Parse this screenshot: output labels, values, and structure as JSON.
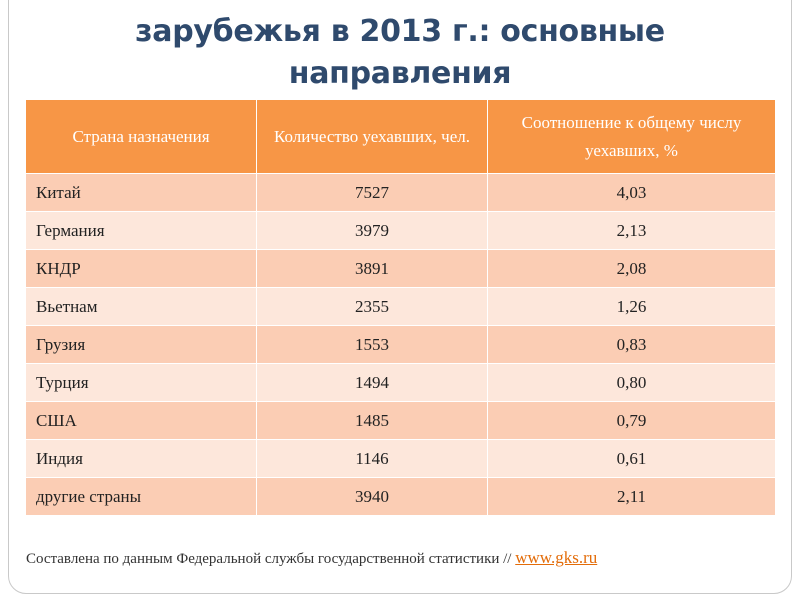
{
  "title": {
    "line0": "",
    "line1": "зарубежья в 2013 г.: основные",
    "line2": "направления"
  },
  "table": {
    "headers": [
      "Страна назначения",
      "Количество уехавших, чел.",
      "Соотношение к общему числу уехавших, %"
    ],
    "rows": [
      {
        "country": "Китай",
        "count": "7527",
        "share": "4,03"
      },
      {
        "country": "Германия",
        "count": "3979",
        "share": "2,13"
      },
      {
        "country": "КНДР",
        "count": "3891",
        "share": "2,08"
      },
      {
        "country": "Вьетнам",
        "count": "2355",
        "share": "1,26"
      },
      {
        "country": "Грузия",
        "count": "1553",
        "share": "0,83"
      },
      {
        "country": "Турция",
        "count": "1494",
        "share": "0,80"
      },
      {
        "country": "США",
        "count": "1485",
        "share": "0,79"
      },
      {
        "country": "Индия",
        "count": "1146",
        "share": "0,61"
      },
      {
        "country": "другие страны",
        "count": "3940",
        "share": "2,11"
      }
    ]
  },
  "source": {
    "text": "Составлена по данным Федеральной службы государственной статистики // ",
    "link": "www.gks.ru"
  },
  "colors": {
    "header": "#f79646",
    "row_odd": "#fbcdb4",
    "row_even": "#fde7db",
    "title": "#2f4a6d",
    "link": "#e36c09"
  }
}
